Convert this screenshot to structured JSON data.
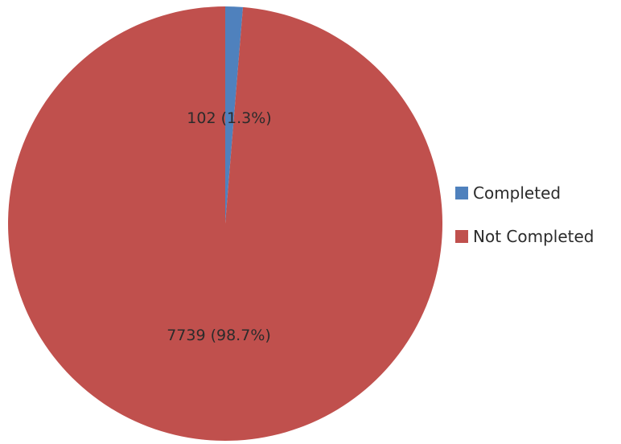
{
  "chart_data": {
    "type": "pie",
    "title": "",
    "categories": [
      "Completed",
      "Not Completed"
    ],
    "values": [
      102,
      7739
    ],
    "data_labels": [
      "102 (1.3%)",
      "7739 (98.7%)"
    ],
    "colors": [
      "#4f81bd",
      "#c0504d"
    ],
    "legend_position": "right",
    "legend": [
      {
        "label": "Completed",
        "color": "#4f81bd"
      },
      {
        "label": "Not Completed",
        "color": "#c0504d"
      }
    ]
  }
}
